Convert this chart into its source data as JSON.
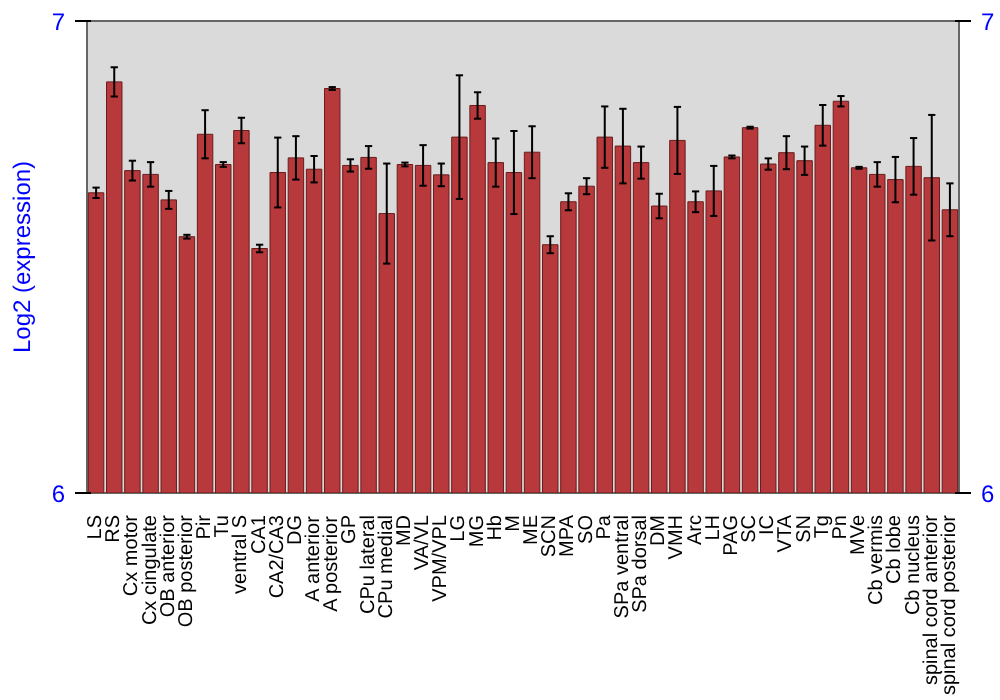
{
  "chart_data": {
    "type": "bar",
    "ylabel": "Log2 (expression)",
    "categories": [
      "LS",
      "RS",
      "Cx motor",
      "Cx cingulate",
      "OB anterior",
      "OB posterior",
      "Pir",
      "Tu",
      "ventral S",
      "CA1",
      "CA2/CA3",
      "DG",
      "A anterior",
      "A posterior",
      "GP",
      "CPu lateral",
      "CPu medial",
      "MD",
      "VA/VL",
      "VPM/VPL",
      "LG",
      "MG",
      "Hb",
      "M",
      "ME",
      "SCN",
      "MPA",
      "SO",
      "Pa",
      "SPa ventral",
      "SPa dorsal",
      "DM",
      "VMH",
      "Arc",
      "LH",
      "PAG",
      "SC",
      "IC",
      "VTA",
      "SN",
      "Tg",
      "Pn",
      "MVe",
      "Cb vermis",
      "Cb lobe",
      "Cb nucleus",
      "spinal cord anterior",
      "spinal cord posterior"
    ],
    "values": [
      6.636,
      6.871,
      6.683,
      6.675,
      6.621,
      6.543,
      6.76,
      6.696,
      6.768,
      6.518,
      6.679,
      6.71,
      6.686,
      6.857,
      6.694,
      6.711,
      6.592,
      6.696,
      6.694,
      6.674,
      6.754,
      6.821,
      6.7,
      6.679,
      6.722,
      6.526,
      6.617,
      6.65,
      6.754,
      6.735,
      6.7,
      6.608,
      6.747,
      6.617,
      6.64,
      6.712,
      6.774,
      6.697,
      6.721,
      6.704,
      6.779,
      6.83,
      6.689,
      6.675,
      6.664,
      6.692,
      6.668,
      6.6
    ],
    "errors": [
      0.011,
      0.031,
      0.021,
      0.026,
      0.019,
      0.004,
      0.051,
      0.005,
      0.027,
      0.008,
      0.074,
      0.046,
      0.028,
      0.003,
      0.013,
      0.024,
      0.106,
      0.004,
      0.043,
      0.024,
      0.131,
      0.028,
      0.051,
      0.088,
      0.055,
      0.018,
      0.018,
      0.017,
      0.065,
      0.079,
      0.034,
      0.026,
      0.071,
      0.022,
      0.053,
      0.003,
      0.002,
      0.012,
      0.035,
      0.03,
      0.043,
      0.011,
      0.002,
      0.026,
      0.048,
      0.06,
      0.133,
      0.056
    ],
    "color": "#b8393b",
    "ylim": [
      6,
      7
    ],
    "yticks": [
      6,
      7
    ],
    "y2lim": [
      6,
      7
    ],
    "y2ticks": [
      6,
      7
    ],
    "grid": false
  }
}
